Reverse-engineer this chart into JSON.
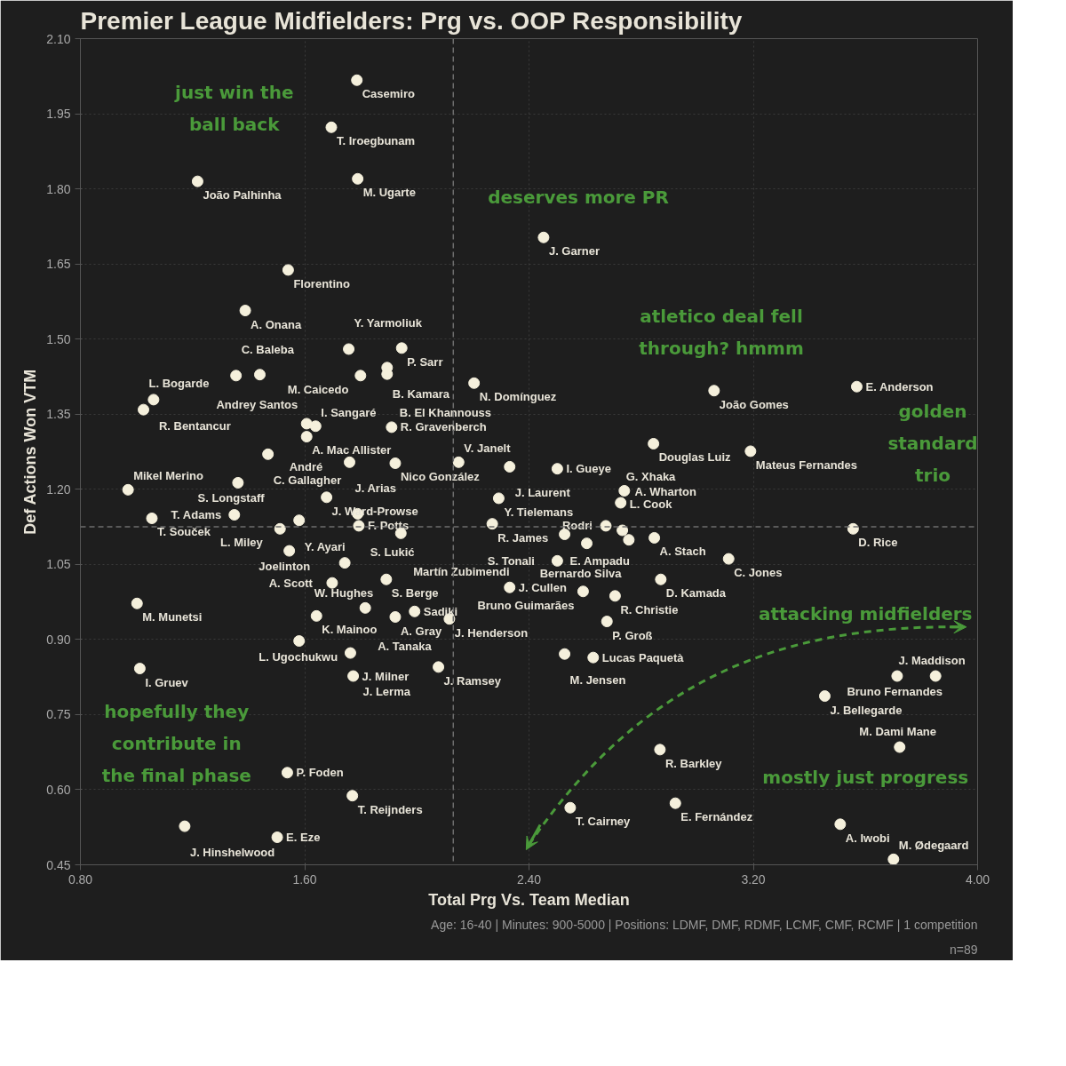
{
  "chart_data": {
    "type": "scatter",
    "title": "Premier League Midfielders: Prg vs. OOP Responsibility",
    "xlabel": "Total Prg Vs. Team Median",
    "ylabel": "Def Actions Won VTM",
    "xlim": [
      0.8,
      4.0
    ],
    "ylim": [
      0.45,
      2.1
    ],
    "xticks": [
      {
        "value": 0.8,
        "label": "0.80"
      },
      {
        "value": 1.6,
        "label": "1.60"
      },
      {
        "value": 2.4,
        "label": "2.40"
      },
      {
        "value": 3.2,
        "label": "3.20"
      },
      {
        "value": 4.0,
        "label": "4.00"
      }
    ],
    "yticks": [
      {
        "value": 0.45,
        "label": "0.45"
      },
      {
        "value": 0.6,
        "label": "0.60"
      },
      {
        "value": 0.75,
        "label": "0.75"
      },
      {
        "value": 0.9,
        "label": "0.90"
      },
      {
        "value": 1.05,
        "label": "1.05"
      },
      {
        "value": 1.2,
        "label": "1.20"
      },
      {
        "value": 1.35,
        "label": "1.35"
      },
      {
        "value": 1.5,
        "label": "1.50"
      },
      {
        "value": 1.65,
        "label": "1.65"
      },
      {
        "value": 1.8,
        "label": "1.80"
      },
      {
        "value": 1.95,
        "label": "1.95"
      },
      {
        "value": 2.1,
        "label": "2.10"
      }
    ],
    "grid": true,
    "marker": "circle",
    "ref_lines": [
      {
        "axis": "x",
        "value": 2.13,
        "color": "#6e6e6e",
        "line_style": "dashed"
      },
      {
        "axis": "y",
        "value": 1.125,
        "color": "#6e6e6e",
        "line_style": "dashed"
      }
    ],
    "series": [
      {
        "color": "#f5f0dc",
        "x": [
          1.786,
          1.695,
          1.218,
          1.789,
          2.452,
          1.541,
          1.388,
          1.757,
          1.946,
          1.894,
          1.894,
          1.799,
          1.355,
          1.44,
          2.204,
          1.061,
          1.025,
          1.607,
          1.639,
          1.607,
          1.91,
          1.469,
          1.76,
          1.923,
          2.149,
          2.331,
          2.501,
          1.362,
          0.97,
          2.292,
          1.055,
          1.349,
          1.678,
          1.58,
          1.512,
          1.545,
          1.789,
          1.793,
          1.943,
          2.269,
          1.743,
          1.698,
          1.891,
          1.002,
          1.642,
          1.816,
          1.923,
          1.992,
          2.116,
          1.58,
          1.763,
          1.773,
          2.077,
          1.012,
          1.538,
          1.77,
          1.172,
          1.502,
          3.06,
          3.569,
          2.844,
          3.19,
          2.74,
          2.727,
          2.527,
          2.606,
          2.501,
          2.674,
          2.733,
          2.847,
          3.112,
          2.87,
          2.707,
          2.678,
          2.593,
          2.331,
          2.527,
          2.629,
          3.556,
          3.713,
          3.85,
          3.455,
          2.867,
          3.722,
          2.547,
          2.922,
          3.51,
          3.7,
          2.756
        ],
        "values": [
          2.017,
          1.923,
          1.815,
          1.82,
          1.703,
          1.638,
          1.557,
          1.48,
          1.482,
          1.443,
          1.43,
          1.427,
          1.427,
          1.429,
          1.412,
          1.379,
          1.359,
          1.331,
          1.326,
          1.305,
          1.324,
          1.27,
          1.254,
          1.252,
          1.254,
          1.245,
          1.241,
          1.213,
          1.199,
          1.182,
          1.142,
          1.149,
          1.184,
          1.138,
          1.121,
          1.077,
          1.151,
          1.127,
          1.112,
          1.131,
          1.053,
          1.013,
          1.02,
          0.972,
          0.947,
          0.963,
          0.945,
          0.956,
          0.941,
          0.897,
          0.873,
          0.827,
          0.845,
          0.842,
          0.634,
          0.588,
          0.527,
          0.505,
          1.397,
          1.405,
          1.291,
          1.276,
          1.197,
          1.173,
          1.11,
          1.092,
          1.057,
          1.127,
          1.118,
          1.103,
          1.061,
          1.02,
          0.987,
          0.936,
          0.996,
          1.004,
          0.871,
          0.864,
          1.121,
          0.827,
          0.827,
          0.787,
          0.68,
          0.685,
          0.564,
          0.573,
          0.531,
          0.461,
          1.099
        ]
      }
    ],
    "annotations": [
      {
        "text": "Casemiro",
        "x": 1.786,
        "y": 2.017
      },
      {
        "text": "T. Iroegbunam",
        "x": 1.695,
        "y": 1.923
      },
      {
        "text": "João Palhinha",
        "x": 1.218,
        "y": 1.815
      },
      {
        "text": "M. Ugarte",
        "x": 1.789,
        "y": 1.82
      },
      {
        "text": "J. Garner",
        "x": 2.452,
        "y": 1.703
      },
      {
        "text": "Florentino",
        "x": 1.541,
        "y": 1.638
      },
      {
        "text": "A. Onana",
        "x": 1.388,
        "y": 1.557
      },
      {
        "text": "Y. Yarmoliuk",
        "x": 1.757,
        "y": 1.48
      },
      {
        "text": "P. Sarr",
        "x": 1.946,
        "y": 1.482
      },
      {
        "text": "B. Kamara",
        "x": 1.894,
        "y": 1.443
      },
      {
        "text": "B. El Khannouss",
        "x": 1.894,
        "y": 1.43
      },
      {
        "text": "M. Caicedo",
        "x": 1.799,
        "y": 1.427
      },
      {
        "text": "C. Baleba",
        "x": 1.355,
        "y": 1.427
      },
      {
        "text": "Andrey Santos",
        "x": 1.44,
        "y": 1.429
      },
      {
        "text": "N. Domínguez",
        "x": 2.204,
        "y": 1.412
      },
      {
        "text": "R. Bentancur",
        "x": 1.061,
        "y": 1.379
      },
      {
        "text": "L. Bogarde",
        "x": 1.025,
        "y": 1.359
      },
      {
        "text": "A. Mac Allister",
        "x": 1.607,
        "y": 1.331
      },
      {
        "text": "I. Sangaré",
        "x": 1.639,
        "y": 1.326
      },
      {
        "text": "André",
        "x": 1.607,
        "y": 1.305
      },
      {
        "text": "R. Gravenberch",
        "x": 1.91,
        "y": 1.324
      },
      {
        "text": "C. Gallagher",
        "x": 1.469,
        "y": 1.27
      },
      {
        "text": "J. Arias",
        "x": 1.76,
        "y": 1.254
      },
      {
        "text": "Nico González",
        "x": 1.923,
        "y": 1.252
      },
      {
        "text": "V. Janelt",
        "x": 2.149,
        "y": 1.254
      },
      {
        "text": "J. Laurent",
        "x": 2.331,
        "y": 1.245
      },
      {
        "text": "I. Gueye",
        "x": 2.501,
        "y": 1.241
      },
      {
        "text": "S. Longstaff",
        "x": 1.362,
        "y": 1.213
      },
      {
        "text": "Mikel Merino",
        "x": 0.97,
        "y": 1.199
      },
      {
        "text": "Y. Tielemans",
        "x": 2.292,
        "y": 1.182
      },
      {
        "text": "T. Souček",
        "x": 1.055,
        "y": 1.142
      },
      {
        "text": "T. Adams",
        "x": 1.349,
        "y": 1.149
      },
      {
        "text": "J. Ward-Prowse",
        "x": 1.678,
        "y": 1.184
      },
      {
        "text": "Y. Ayari",
        "x": 1.58,
        "y": 1.138
      },
      {
        "text": "L. Miley",
        "x": 1.512,
        "y": 1.121
      },
      {
        "text": "Joelinton",
        "x": 1.545,
        "y": 1.077
      },
      {
        "text": "S. Lukić",
        "x": 1.789,
        "y": 1.151
      },
      {
        "text": "F. Potts",
        "x": 1.793,
        "y": 1.127
      },
      {
        "text": "Martín Zubimendi",
        "x": 1.943,
        "y": 1.112
      },
      {
        "text": "R. James",
        "x": 2.269,
        "y": 1.131
      },
      {
        "text": "W. Hughes",
        "x": 1.743,
        "y": 1.053
      },
      {
        "text": "A. Scott",
        "x": 1.698,
        "y": 1.013
      },
      {
        "text": "S. Berge",
        "x": 1.891,
        "y": 1.02
      },
      {
        "text": "M. Munetsi",
        "x": 1.002,
        "y": 0.972
      },
      {
        "text": "K. Mainoo",
        "x": 1.642,
        "y": 0.947
      },
      {
        "text": "A. Tanaka",
        "x": 1.816,
        "y": 0.963
      },
      {
        "text": "A. Gray",
        "x": 1.923,
        "y": 0.945
      },
      {
        "text": "Sadiki",
        "x": 1.992,
        "y": 0.956
      },
      {
        "text": "J. Henderson",
        "x": 2.116,
        "y": 0.941
      },
      {
        "text": "L. Ugochukwu",
        "x": 1.58,
        "y": 0.897
      },
      {
        "text": "J. Lerma",
        "x": 1.763,
        "y": 0.873
      },
      {
        "text": "J. Milner",
        "x": 1.773,
        "y": 0.827
      },
      {
        "text": "J. Ramsey",
        "x": 2.077,
        "y": 0.845
      },
      {
        "text": "I. Gruev",
        "x": 1.012,
        "y": 0.842
      },
      {
        "text": "P. Foden",
        "x": 1.538,
        "y": 0.634
      },
      {
        "text": "T. Reijnders",
        "x": 1.77,
        "y": 0.588
      },
      {
        "text": "J. Hinshelwood",
        "x": 1.172,
        "y": 0.527
      },
      {
        "text": "E. Eze",
        "x": 1.502,
        "y": 0.505
      },
      {
        "text": "João Gomes",
        "x": 3.06,
        "y": 1.397
      },
      {
        "text": "E. Anderson",
        "x": 3.569,
        "y": 1.405
      },
      {
        "text": "Douglas Luiz",
        "x": 2.844,
        "y": 1.291
      },
      {
        "text": "Mateus Fernandes",
        "x": 3.19,
        "y": 1.276
      },
      {
        "text": "L. Cook",
        "x": 2.74,
        "y": 1.197
      },
      {
        "text": "G. Xhaka",
        "x": 2.727,
        "y": 1.173
      },
      {
        "text": "E. Ampadu",
        "x": 2.527,
        "y": 1.11
      },
      {
        "text": "Bernardo Silva",
        "x": 2.606,
        "y": 1.092
      },
      {
        "text": "S. Tonali",
        "x": 2.501,
        "y": 1.057
      },
      {
        "text": "Rodri",
        "x": 2.674,
        "y": 1.127
      },
      {
        "text": "A. Wharton",
        "x": 2.733,
        "y": 1.118
      },
      {
        "text": "A. Stach",
        "x": 2.847,
        "y": 1.103
      },
      {
        "text": "C. Jones",
        "x": 3.112,
        "y": 1.061
      },
      {
        "text": "D. Kamada",
        "x": 2.87,
        "y": 1.02
      },
      {
        "text": "R. Christie",
        "x": 2.707,
        "y": 0.987
      },
      {
        "text": "P. Groß",
        "x": 2.678,
        "y": 0.936
      },
      {
        "text": "Bruno Guimarães",
        "x": 2.593,
        "y": 0.996
      },
      {
        "text": "J. Cullen",
        "x": 2.331,
        "y": 1.004
      },
      {
        "text": "M. Jensen",
        "x": 2.527,
        "y": 0.871
      },
      {
        "text": "Lucas Paquetà",
        "x": 2.629,
        "y": 0.864
      },
      {
        "text": "D. Rice",
        "x": 3.556,
        "y": 1.121
      },
      {
        "text": "Bruno Fernandes",
        "x": 3.713,
        "y": 0.827
      },
      {
        "text": "J. Maddison",
        "x": 3.85,
        "y": 0.827
      },
      {
        "text": "J. Bellegarde",
        "x": 3.455,
        "y": 0.787
      },
      {
        "text": "R. Barkley",
        "x": 2.867,
        "y": 0.68
      },
      {
        "text": "M. Dami Mane",
        "x": 3.722,
        "y": 0.685
      },
      {
        "text": "T. Cairney",
        "x": 2.547,
        "y": 0.564
      },
      {
        "text": "E. Fernández",
        "x": 2.922,
        "y": 0.573
      },
      {
        "text": "A. Iwobi",
        "x": 3.51,
        "y": 0.531
      },
      {
        "text": "M. Ødegaard",
        "x": 3.7,
        "y": 0.461
      },
      "just win the\nball back",
      "deserves more PR",
      "atletico deal fell\nthrough? hmmm",
      "golden\nstandard\ntrio",
      "attacking midfielders",
      "mostly just progress",
      "hopefully they\ncontribute in\nthe final phase",
      "Age: 16-40 | Minutes: 900-5000 | Positions: LDMF, DMF, RDMF, LCMF, CMF, RCMF | 1 competition",
      "n=89"
    ]
  }
}
